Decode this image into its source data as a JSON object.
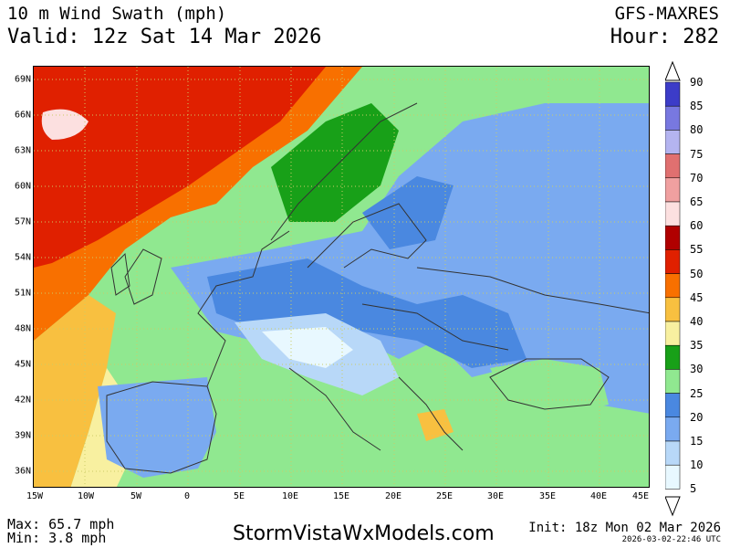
{
  "header": {
    "title": "10 m Wind Swath (mph)",
    "valid": "Valid: 12z Sat 14 Mar 2026",
    "model": "GFS-MAXRES",
    "hour": "Hour: 282"
  },
  "map": {
    "lat_labels": [
      "69N",
      "66N",
      "63N",
      "60N",
      "57N",
      "54N",
      "51N",
      "48N",
      "45N",
      "42N",
      "39N",
      "36N"
    ],
    "lon_labels": [
      "15W",
      "10W",
      "5W",
      "0",
      "5E",
      "10E",
      "15E",
      "20E",
      "25E",
      "30E",
      "35E",
      "40E",
      "45E"
    ],
    "colors": {
      "c5_10": "#e8f8ff",
      "c10_15": "#b8d8f8",
      "c15_20": "#7aaaf0",
      "c20_25": "#4a88e0",
      "c25_30": "#90e890",
      "c30_35": "#18a018",
      "c35_40": "#f8f0a0",
      "c40_45": "#f8c040",
      "c45_50": "#f87000",
      "c50_55": "#e02000",
      "border": "#333333",
      "grid": "#cccc66"
    }
  },
  "legend": {
    "labels": [
      "90",
      "85",
      "80",
      "75",
      "70",
      "65",
      "60",
      "55",
      "50",
      "45",
      "40",
      "35",
      "30",
      "25",
      "20",
      "15",
      "10",
      "5"
    ],
    "bins": [
      {
        "range": "85-90",
        "color": "#3c3cc8"
      },
      {
        "range": "80-85",
        "color": "#7878e0"
      },
      {
        "range": "75-80",
        "color": "#b4b4f0"
      },
      {
        "range": "70-75",
        "color": "#e07070"
      },
      {
        "range": "65-70",
        "color": "#f0a0a0"
      },
      {
        "range": "60-65",
        "color": "#fce0e0"
      },
      {
        "range": "55-60",
        "color": "#b00000"
      },
      {
        "range": "50-55",
        "color": "#e02000"
      },
      {
        "range": "45-50",
        "color": "#f87000"
      },
      {
        "range": "40-45",
        "color": "#f8c040"
      },
      {
        "range": "35-40",
        "color": "#f8f0a0"
      },
      {
        "range": "30-35",
        "color": "#18a018"
      },
      {
        "range": "25-30",
        "color": "#90e890"
      },
      {
        "range": "20-25",
        "color": "#4a88e0"
      },
      {
        "range": "15-20",
        "color": "#7aaaf0"
      },
      {
        "range": "10-15",
        "color": "#b8d8f8"
      },
      {
        "range": "5-10",
        "color": "#e8f8ff"
      }
    ]
  },
  "footer": {
    "max": "Max: 65.7 mph",
    "min": "Min: 3.8 mph",
    "site": "StormVistaWxModels.com",
    "init": "Init: 18z Mon 02 Mar 2026",
    "stamp": "2026-03-02-22:46 UTC"
  }
}
